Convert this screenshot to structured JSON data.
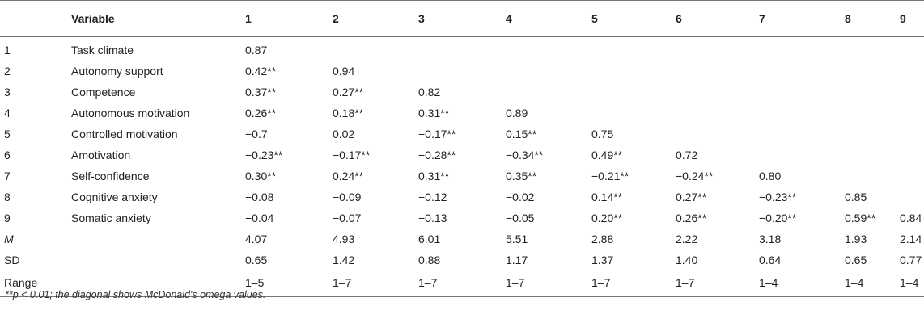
{
  "table": {
    "headers": [
      "",
      "Variable",
      "1",
      "2",
      "3",
      "4",
      "5",
      "6",
      "7",
      "8",
      "9"
    ],
    "rows": [
      {
        "idx": "1",
        "label": "Task climate",
        "values": [
          "0.87",
          "",
          "",
          "",
          "",
          "",
          "",
          "",
          ""
        ]
      },
      {
        "idx": "2",
        "label": "Autonomy support",
        "values": [
          "0.42**",
          "0.94",
          "",
          "",
          "",
          "",
          "",
          "",
          ""
        ]
      },
      {
        "idx": "3",
        "label": "Competence",
        "values": [
          "0.37**",
          "0.27**",
          "0.82",
          "",
          "",
          "",
          "",
          "",
          ""
        ]
      },
      {
        "idx": "4",
        "label": "Autonomous motivation",
        "values": [
          "0.26**",
          "0.18**",
          "0.31**",
          "0.89",
          "",
          "",
          "",
          "",
          ""
        ]
      },
      {
        "idx": "5",
        "label": "Controlled motivation",
        "values": [
          "−0.7",
          "0.02",
          "−0.17**",
          "0.15**",
          "0.75",
          "",
          "",
          "",
          ""
        ]
      },
      {
        "idx": "6",
        "label": "Amotivation",
        "values": [
          "−0.23**",
          "−0.17**",
          "−0.28**",
          "−0.34**",
          "0.49**",
          "0.72",
          "",
          "",
          ""
        ]
      },
      {
        "idx": "7",
        "label": "Self-confidence",
        "values": [
          "0.30**",
          "0.24**",
          "0.31**",
          "0.35**",
          "−0.21**",
          "−0.24**",
          "0.80",
          "",
          ""
        ]
      },
      {
        "idx": "8",
        "label": "Cognitive anxiety",
        "values": [
          "−0.08",
          "−0.09",
          "−0.12",
          "−0.02",
          "0.14**",
          "0.27**",
          "−0.23**",
          "0.85",
          ""
        ]
      },
      {
        "idx": "9",
        "label": "Somatic anxiety",
        "values": [
          "−0.04",
          "−0.07",
          "−0.13",
          "−0.05",
          "0.20**",
          "0.26**",
          "−0.20**",
          "0.59**",
          "0.84"
        ]
      },
      {
        "idx": "M",
        "label": "",
        "values": [
          "4.07",
          "4.93",
          "6.01",
          "5.51",
          "2.88",
          "2.22",
          "3.18",
          "1.93",
          "2.14"
        ]
      },
      {
        "idx": "SD",
        "label": "",
        "values": [
          "0.65",
          "1.42",
          "0.88",
          "1.17",
          "1.37",
          "1.40",
          "0.64",
          "0.65",
          "0.77"
        ]
      },
      {
        "idx": "Range",
        "label": "",
        "values": [
          "1–5",
          "1–7",
          "1–7",
          "1–7",
          "1–7",
          "1–7",
          "1–4",
          "1–4",
          "1–4"
        ]
      }
    ]
  },
  "footnote": "**p < 0.01; the diagonal shows McDonald's omega values."
}
